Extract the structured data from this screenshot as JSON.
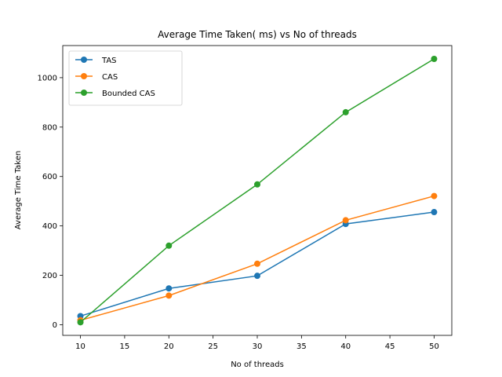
{
  "chart_data": {
    "type": "line",
    "title": "Average Time Taken( ms) vs No of threads",
    "xlabel": "No of threads",
    "ylabel": "Average Time Taken",
    "x": [
      10,
      20,
      30,
      40,
      50
    ],
    "xlim": [
      8,
      52
    ],
    "ylim": [
      -43,
      1130
    ],
    "xticks": [
      10,
      15,
      20,
      25,
      30,
      35,
      40,
      45,
      50
    ],
    "yticks": [
      0,
      200,
      400,
      600,
      800,
      1000
    ],
    "grid": false,
    "legend_position": "top-left",
    "series": [
      {
        "name": "TAS",
        "color": "#1f77b4",
        "values": [
          35,
          147,
          198,
          408,
          456
        ]
      },
      {
        "name": "CAS",
        "color": "#ff7f0e",
        "values": [
          18,
          118,
          247,
          423,
          521
        ]
      },
      {
        "name": "Bounded CAS",
        "color": "#2ca02c",
        "values": [
          10,
          320,
          568,
          860,
          1076
        ]
      }
    ]
  }
}
